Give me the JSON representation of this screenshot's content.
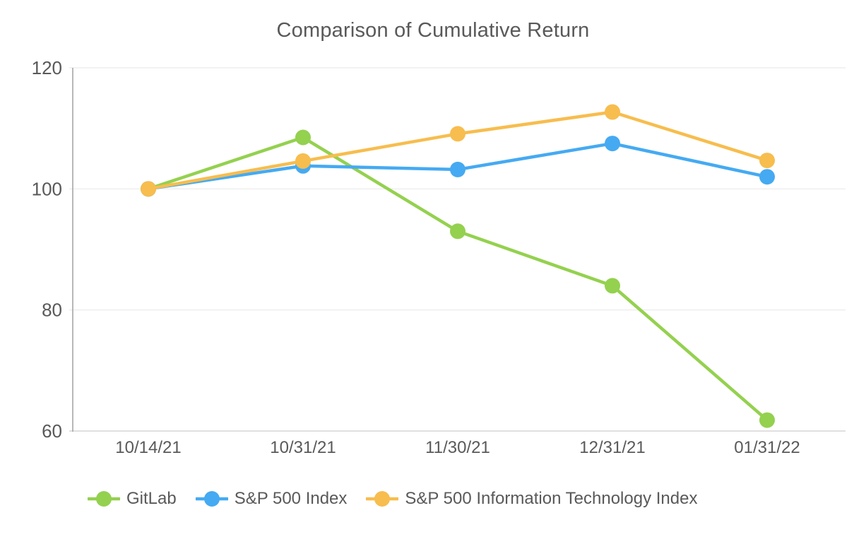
{
  "title": "Comparison of Cumulative Return",
  "chart_data": {
    "type": "line",
    "title": "Comparison of Cumulative Return",
    "categories": [
      "10/14/21",
      "10/31/21",
      "11/30/21",
      "12/31/21",
      "01/31/22"
    ],
    "series": [
      {
        "name": "GitLab",
        "color": "#94d14f",
        "values": [
          100,
          108.5,
          93,
          84,
          61.8
        ]
      },
      {
        "name": "S&P 500 Index",
        "color": "#45aaf2",
        "values": [
          100,
          103.8,
          103.2,
          107.5,
          102
        ]
      },
      {
        "name": "S&P 500 Information Technology Index",
        "color": "#f7bd4e",
        "values": [
          100,
          104.6,
          109.1,
          112.7,
          104.7
        ]
      }
    ],
    "ylim": [
      60,
      120
    ],
    "yticks": [
      60,
      80,
      100,
      120
    ],
    "grid": true,
    "legend_position": "bottom",
    "xlabel": "",
    "ylabel": ""
  },
  "colors": {
    "text": "#595959",
    "grid": "#e9e9e9",
    "baseline": "#d6d6d6",
    "axis": "#a6a6a6",
    "background": "#ffffff"
  }
}
